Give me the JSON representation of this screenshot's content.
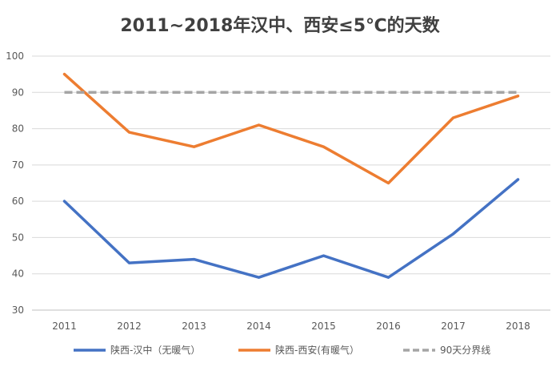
{
  "chart_data": {
    "type": "line",
    "title": "2011~2018年汉中、西安≤5℃的天数",
    "x": [
      "2011",
      "2012",
      "2013",
      "2014",
      "2015",
      "2016",
      "2017",
      "2018"
    ],
    "ylim": [
      30,
      100
    ],
    "yticks": [
      30,
      40,
      50,
      60,
      70,
      80,
      90,
      100
    ],
    "grid": true,
    "legend": "bottom",
    "series": [
      {
        "name": "陕西-汉中（无暖气）",
        "values": [
          60,
          43,
          44,
          39,
          45,
          39,
          51,
          66
        ],
        "color": "#4472C4",
        "dashed": false
      },
      {
        "name": "陕西-西安(有暖气）",
        "values": [
          95,
          79,
          75,
          81,
          75,
          65,
          83,
          89
        ],
        "color": "#ED7D31",
        "dashed": false
      },
      {
        "name": "90天分界线",
        "values": [
          90,
          90,
          90,
          90,
          90,
          90,
          90,
          90
        ],
        "color": "#A5A5A5",
        "dashed": true
      }
    ]
  }
}
